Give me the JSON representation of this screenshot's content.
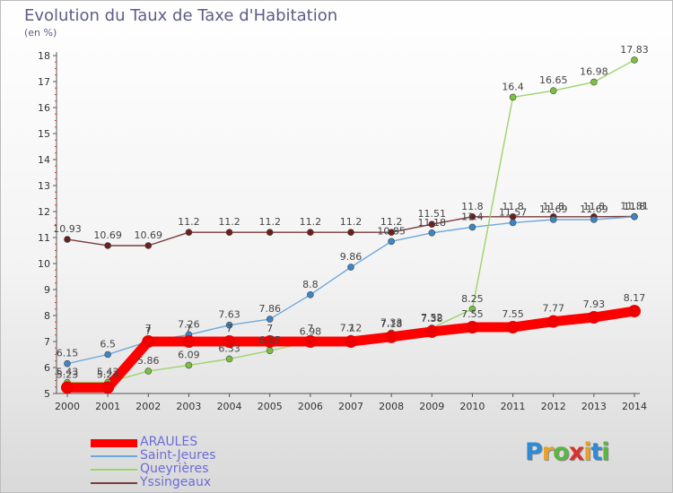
{
  "title": "Evolution du Taux de Taxe d'Habitation",
  "subtitle": "(en %)",
  "logo": {
    "letters": [
      "P",
      "r",
      "o",
      "x",
      "i",
      "t",
      "i"
    ],
    "colors": [
      "#2e8bd6",
      "#e8a12c",
      "#5ab543",
      "#d9312b",
      "#e8a12c",
      "#2e8bd6",
      "#5ab543"
    ]
  },
  "chart_data": {
    "type": "line",
    "title": "Evolution du Taux de Taxe d'Habitation",
    "ylabel": "(en %)",
    "xlabel": "",
    "x": [
      "2000",
      "2001",
      "2002",
      "2003",
      "2004",
      "2005",
      "2006",
      "2007",
      "2008",
      "2009",
      "2010",
      "2011",
      "2012",
      "2013",
      "2014"
    ],
    "ylim": [
      5,
      18
    ],
    "yticks": [
      "5",
      "6",
      "7",
      "8",
      "9",
      "10",
      "11",
      "12",
      "13",
      "14",
      "15",
      "16",
      "17",
      "18"
    ],
    "grid": false,
    "legend_position": "bottom-left",
    "series": [
      {
        "name": "ARAULES",
        "color": "#ff0000",
        "marker": "#ee0000",
        "values": [
          5.23,
          5.23,
          7,
          7,
          7,
          7,
          7,
          7,
          7.18,
          7.38,
          7.55,
          7.55,
          7.77,
          7.93,
          8.17
        ],
        "labels": [
          "5.23",
          "5.23",
          "7",
          "7",
          "7",
          "7",
          "7",
          "7",
          "7.18",
          "7.38",
          "7.55",
          "7.55",
          "7.77",
          "7.93",
          "8.17"
        ]
      },
      {
        "name": "Saint-Jeures",
        "color": "#6fa8dc",
        "marker": "#3d85c6",
        "values": [
          6.15,
          6.5,
          7,
          7.26,
          7.63,
          7.86,
          8.8,
          9.86,
          10.85,
          11.18,
          11.4,
          11.57,
          11.69,
          11.69,
          11.8
        ],
        "labels": [
          "6.15",
          "6.5",
          "7",
          "7.26",
          "7.63",
          "7.86",
          "8.8",
          "9.86",
          "10.85",
          "11.18",
          "11.4",
          "11.57",
          "11.69",
          "11.69",
          "11.8"
        ]
      },
      {
        "name": "Queyrières",
        "color": "#9ed36a",
        "marker": "#7ac143",
        "values": [
          5.43,
          5.43,
          5.86,
          6.09,
          6.33,
          6.65,
          6.98,
          7.12,
          7.33,
          7.52,
          8.25,
          16.4,
          16.65,
          16.98,
          17.83
        ],
        "labels": [
          "5.43",
          "5.43",
          "5.86",
          "6.09",
          "6.33",
          "6.65",
          "6.98",
          "7.12",
          "7.33",
          "7.52",
          "8.25",
          "16.4",
          "16.65",
          "16.98",
          "17.83"
        ]
      },
      {
        "name": "Yssingeaux",
        "color": "#7a3b3b",
        "marker": "#6b1f1f",
        "values": [
          10.93,
          10.69,
          10.69,
          11.2,
          11.2,
          11.2,
          11.2,
          11.2,
          11.2,
          11.51,
          11.8,
          11.8,
          11.8,
          11.8,
          11.81
        ],
        "labels": [
          "10.93",
          "10.69",
          "10.69",
          "11.2",
          "11.2",
          "11.2",
          "11.2",
          "11.2",
          "11.2",
          "11.51",
          "11.8",
          "11.8",
          "11.8",
          "11.8",
          "11.81"
        ]
      }
    ]
  }
}
